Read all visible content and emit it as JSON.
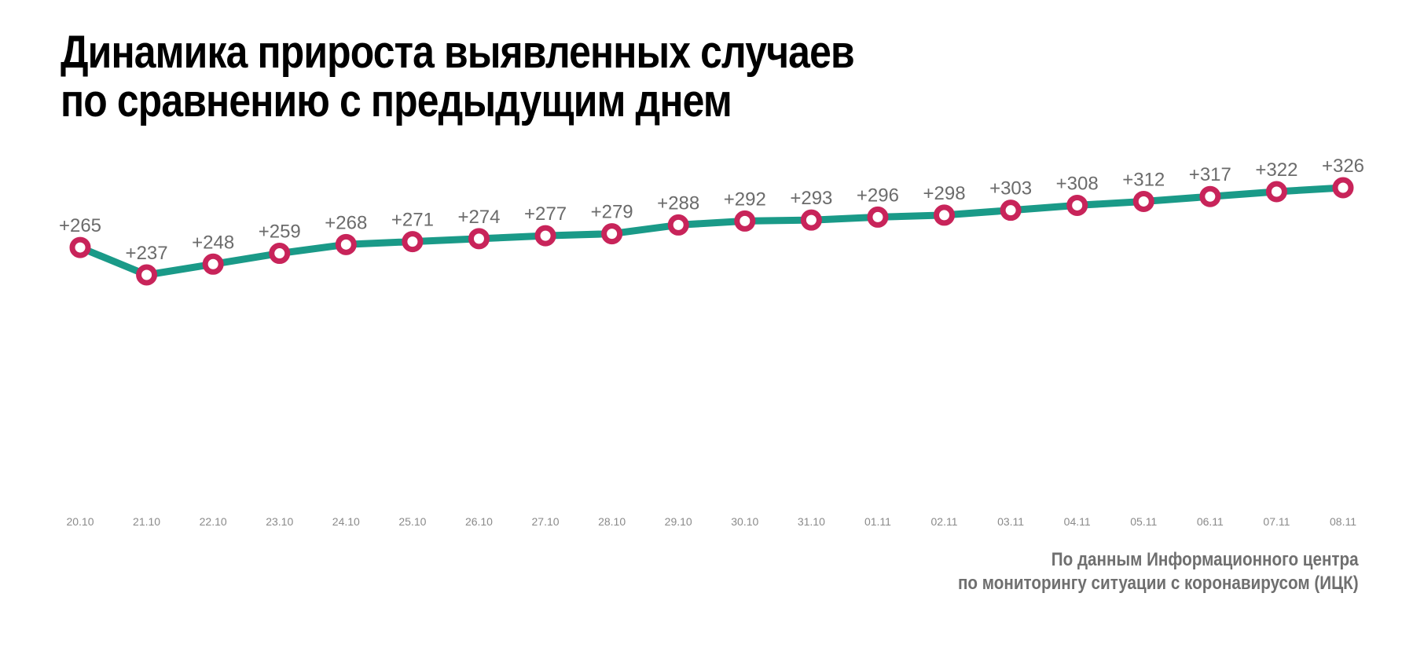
{
  "title": {
    "line1": "Динамика прироста выявленных случаев",
    "line2": "по сравнению с предыдущим днем"
  },
  "source": {
    "line1": "По данным Информационного центра",
    "line2": "по мониторингу ситуации с коронавирусом (ИЦК)"
  },
  "colors": {
    "line": "#1a9a88",
    "marker": "#c8245a",
    "label": "#6b6b6b",
    "tick": "#8a8a8a"
  },
  "chart_data": {
    "type": "line",
    "title": "Динамика прироста выявленных случаев по сравнению с предыдущим днем",
    "xlabel": "",
    "ylabel": "",
    "grid": false,
    "legend": "none",
    "categories": [
      "20.10",
      "21.10",
      "22.10",
      "23.10",
      "24.10",
      "25.10",
      "26.10",
      "27.10",
      "28.10",
      "29.10",
      "30.10",
      "31.10",
      "01.11",
      "02.11",
      "03.11",
      "04.11",
      "05.11",
      "06.11",
      "07.11",
      "08.11"
    ],
    "values": [
      265,
      237,
      248,
      259,
      268,
      271,
      274,
      277,
      279,
      288,
      292,
      293,
      296,
      298,
      303,
      308,
      312,
      317,
      322,
      326
    ],
    "data_labels": [
      "+265",
      "+237",
      "+248",
      "+259",
      "+268",
      "+271",
      "+274",
      "+277",
      "+279",
      "+288",
      "+292",
      "+293",
      "+296",
      "+298",
      "+303",
      "+308",
      "+312",
      "+317",
      "+322",
      "+326"
    ]
  }
}
